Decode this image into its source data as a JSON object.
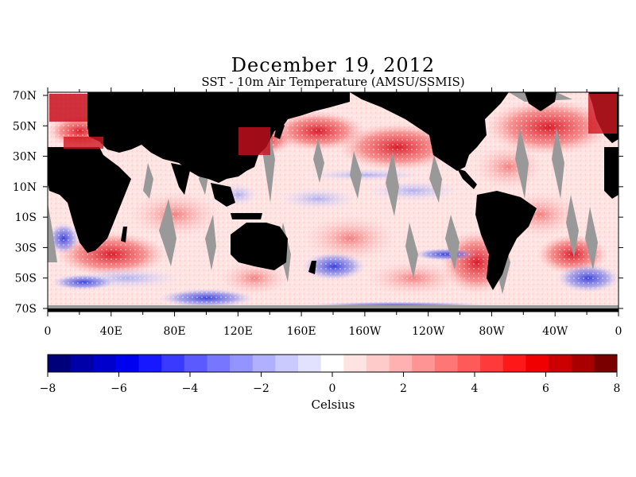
{
  "title": "December 19, 2012",
  "subtitle": "SST - 10m Air Temperature (AMSU/SSMIS)",
  "map": {
    "lat_labels": [
      "70N",
      "50N",
      "30N",
      "10N",
      "10S",
      "30S",
      "50S",
      "70S"
    ],
    "lon_labels": [
      "0",
      "40E",
      "80E",
      "120E",
      "160E",
      "160W",
      "120W",
      "80W",
      "40W",
      "0"
    ],
    "colors": {
      "land": "#000000",
      "no_data": "#999999",
      "warm": "#e0202a",
      "cool": "#1428d8"
    }
  },
  "colorbar": {
    "tick_labels": [
      "−8",
      "−6",
      "−4",
      "−2",
      "0",
      "2",
      "4",
      "6",
      "8"
    ],
    "range": [
      -8,
      8
    ],
    "unit": "Celsius",
    "colors": [
      "#00007a",
      "#0000a8",
      "#0000cc",
      "#0000f0",
      "#1818ff",
      "#3a3aff",
      "#5a5aff",
      "#7676ff",
      "#9494ff",
      "#b0b0ff",
      "#cacaff",
      "#e2e2ff",
      "#ffffff",
      "#ffe2e2",
      "#ffcaca",
      "#ffb0b0",
      "#ff9494",
      "#ff7676",
      "#ff5a5a",
      "#ff3a3a",
      "#ff1818",
      "#f00000",
      "#cc0000",
      "#a80000",
      "#7a0000"
    ]
  }
}
